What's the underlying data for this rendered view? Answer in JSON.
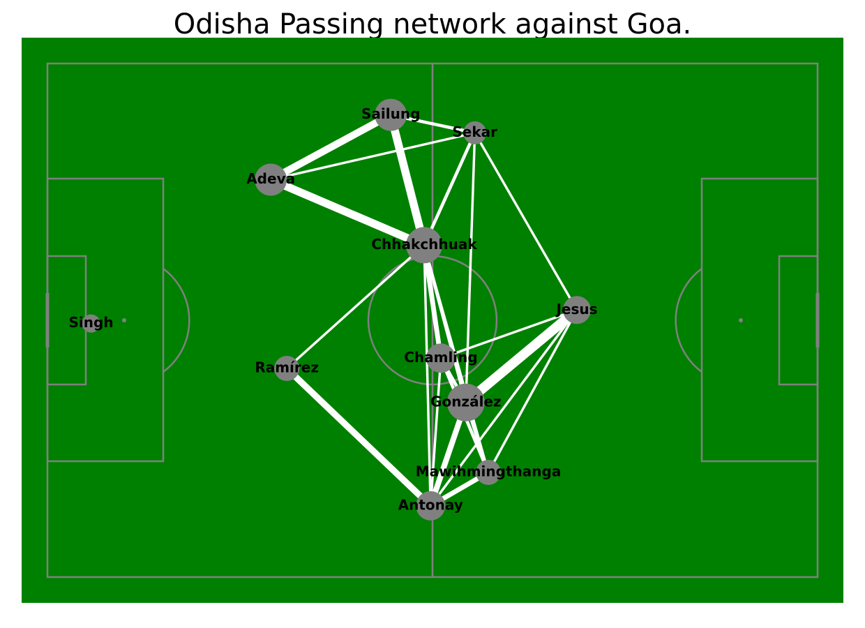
{
  "title": "Odisha Passing network against Goa.",
  "colors": {
    "pitch": "#008000",
    "lines": "#808080",
    "edges": "#ffffff",
    "nodes": "#808080",
    "labels": "#000000"
  },
  "chart_data": {
    "type": "network",
    "title": "Odisha Passing network against Goa.",
    "pitch": {
      "length": 120,
      "width": 80
    },
    "nodes": [
      {
        "name": "Sailung",
        "x": 53.5,
        "y": 72.0,
        "size": 46
      },
      {
        "name": "Sekar",
        "x": 66.6,
        "y": 69.2,
        "size": 33
      },
      {
        "name": "Adeva",
        "x": 34.8,
        "y": 61.9,
        "size": 46
      },
      {
        "name": "Chhakchhuak",
        "x": 58.7,
        "y": 51.7,
        "size": 52
      },
      {
        "name": "Jesus",
        "x": 82.5,
        "y": 41.6,
        "size": 40
      },
      {
        "name": "Singh",
        "x": 6.8,
        "y": 39.5,
        "size": 26
      },
      {
        "name": "Chamling",
        "x": 61.3,
        "y": 34.1,
        "size": 42
      },
      {
        "name": "Ramírez",
        "x": 37.3,
        "y": 32.5,
        "size": 36
      },
      {
        "name": "González",
        "x": 65.2,
        "y": 27.2,
        "size": 54
      },
      {
        "name": "Mawihmingthanga",
        "x": 68.7,
        "y": 16.3,
        "size": 36
      },
      {
        "name": "Antonay",
        "x": 59.7,
        "y": 11.1,
        "size": 42
      }
    ],
    "edges": [
      {
        "source": "Sailung",
        "target": "Adeva",
        "weight": 9
      },
      {
        "source": "Sailung",
        "target": "Sekar",
        "weight": 4
      },
      {
        "source": "Sailung",
        "target": "Chhakchhuak",
        "weight": 10
      },
      {
        "source": "Adeva",
        "target": "Sekar",
        "weight": 3
      },
      {
        "source": "Adeva",
        "target": "Chhakchhuak",
        "weight": 10
      },
      {
        "source": "Sekar",
        "target": "Chhakchhuak",
        "weight": 4
      },
      {
        "source": "Sekar",
        "target": "González",
        "weight": 3
      },
      {
        "source": "Sekar",
        "target": "Jesus",
        "weight": 3
      },
      {
        "source": "Chhakchhuak",
        "target": "Ramírez",
        "weight": 3
      },
      {
        "source": "Chhakchhuak",
        "target": "Chamling",
        "weight": 6
      },
      {
        "source": "Chhakchhuak",
        "target": "González",
        "weight": 4
      },
      {
        "source": "Chhakchhuak",
        "target": "Antonay",
        "weight": 3
      },
      {
        "source": "Chhakchhuak",
        "target": "Mawihmingthanga",
        "weight": 3
      },
      {
        "source": "Jesus",
        "target": "Chamling",
        "weight": 3
      },
      {
        "source": "Jesus",
        "target": "González",
        "weight": 12
      },
      {
        "source": "Jesus",
        "target": "Antonay",
        "weight": 3
      },
      {
        "source": "Jesus",
        "target": "Mawihmingthanga",
        "weight": 3
      },
      {
        "source": "Chamling",
        "target": "González",
        "weight": 4
      },
      {
        "source": "Chamling",
        "target": "Antonay",
        "weight": 3
      },
      {
        "source": "Chamling",
        "target": "Mawihmingthanga",
        "weight": 4
      },
      {
        "source": "Ramírez",
        "target": "Antonay",
        "weight": 8
      },
      {
        "source": "González",
        "target": "Antonay",
        "weight": 7
      },
      {
        "source": "González",
        "target": "Mawihmingthanga",
        "weight": 4
      },
      {
        "source": "Antonay",
        "target": "Mawihmingthanga",
        "weight": 6
      }
    ]
  }
}
